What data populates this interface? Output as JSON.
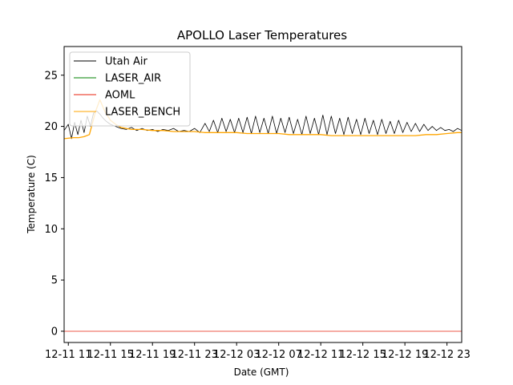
{
  "chart_data": {
    "type": "line",
    "title": "APOLLO Laser Temperatures",
    "xlabel": "Date (GMT)",
    "ylabel": "Temperature (C)",
    "xlim": [
      -0.4,
      37.4
    ],
    "ylim": [
      -1.1,
      27.8
    ],
    "x_unit": "hours since 12-11 11:00",
    "xticks": [
      {
        "value": 0,
        "label": "12-11 11"
      },
      {
        "value": 4,
        "label": "12-11 15"
      },
      {
        "value": 8,
        "label": "12-11 19"
      },
      {
        "value": 12,
        "label": "12-11 23"
      },
      {
        "value": 16,
        "label": "12-12 03"
      },
      {
        "value": 20,
        "label": "12-12 07"
      },
      {
        "value": 24,
        "label": "12-12 11"
      },
      {
        "value": 28,
        "label": "12-12 15"
      },
      {
        "value": 32,
        "label": "12-12 19"
      },
      {
        "value": 36,
        "label": "12-12 23"
      }
    ],
    "yticks": [
      {
        "value": 0,
        "label": "0"
      },
      {
        "value": 5,
        "label": "5"
      },
      {
        "value": 10,
        "label": "10"
      },
      {
        "value": 15,
        "label": "15"
      },
      {
        "value": 20,
        "label": "20"
      },
      {
        "value": 25,
        "label": "25"
      }
    ],
    "legend_position": "top-left",
    "series": [
      {
        "name": "Utah Air",
        "color": "#000000",
        "x": [
          -0.4,
          0.0,
          0.3,
          0.6,
          0.9,
          1.2,
          1.5,
          1.8,
          2.1,
          2.4,
          2.7,
          3.0,
          3.3,
          3.6,
          4.0,
          4.5,
          5.0,
          5.5,
          6.0,
          6.5,
          7.0,
          7.5,
          8.0,
          8.5,
          9.0,
          9.5,
          10.0,
          10.5,
          11.0,
          11.5,
          12.0,
          12.5,
          13.0,
          13.4,
          13.8,
          14.2,
          14.6,
          15.0,
          15.4,
          15.8,
          16.2,
          16.6,
          17.0,
          17.4,
          17.8,
          18.2,
          18.6,
          19.0,
          19.4,
          19.8,
          20.2,
          20.6,
          21.0,
          21.4,
          21.8,
          22.2,
          22.6,
          23.0,
          23.4,
          23.8,
          24.2,
          24.6,
          25.0,
          25.4,
          25.8,
          26.2,
          26.6,
          27.0,
          27.4,
          27.8,
          28.2,
          28.6,
          29.0,
          29.4,
          29.8,
          30.2,
          30.6,
          31.0,
          31.4,
          31.8,
          32.2,
          32.6,
          33.0,
          33.4,
          33.8,
          34.2,
          34.6,
          35.0,
          35.4,
          35.8,
          36.2,
          36.6,
          37.0,
          37.4
        ],
        "values": [
          19.6,
          20.2,
          18.8,
          20.4,
          19.2,
          20.6,
          19.4,
          21.0,
          20.0,
          21.3,
          21.5,
          21.2,
          20.8,
          20.5,
          20.2,
          20.0,
          19.8,
          19.7,
          19.9,
          19.6,
          19.8,
          19.6,
          19.7,
          19.5,
          19.7,
          19.6,
          19.8,
          19.5,
          19.6,
          19.5,
          19.8,
          19.4,
          20.3,
          19.5,
          20.6,
          19.4,
          20.8,
          19.5,
          20.7,
          19.4,
          20.8,
          19.4,
          20.9,
          19.3,
          21.0,
          19.4,
          20.8,
          19.3,
          21.0,
          19.3,
          20.8,
          19.4,
          20.9,
          19.3,
          20.7,
          19.2,
          21.0,
          19.3,
          20.8,
          19.2,
          21.1,
          19.2,
          21.0,
          19.3,
          20.8,
          19.2,
          20.9,
          19.3,
          20.7,
          19.2,
          20.8,
          19.3,
          20.6,
          19.2,
          20.7,
          19.3,
          20.5,
          19.3,
          20.6,
          19.4,
          20.4,
          19.5,
          20.3,
          19.5,
          20.2,
          19.6,
          20.0,
          19.6,
          19.9,
          19.6,
          19.7,
          19.5,
          19.8,
          19.6
        ]
      },
      {
        "name": "LASER_AIR",
        "color": "#008000",
        "x": [],
        "values": []
      },
      {
        "name": "AOML",
        "color": "#e8200c",
        "x": [
          -0.4,
          37.4
        ],
        "values": [
          0.0,
          0.0
        ]
      },
      {
        "name": "LASER_BENCH",
        "color": "#ffa500",
        "x": [
          -0.4,
          0.5,
          1.0,
          1.5,
          2.0,
          2.6,
          3.0,
          3.5,
          4.0,
          4.5,
          5.0,
          5.5,
          6.0,
          7.0,
          8.0,
          9.0,
          10.0,
          11.0,
          12.0,
          13.0,
          14.0,
          15.0,
          16.0,
          17.0,
          18.0,
          19.0,
          20.0,
          21.0,
          22.0,
          23.0,
          24.0,
          25.0,
          26.0,
          27.0,
          28.0,
          29.0,
          30.0,
          31.0,
          32.0,
          33.0,
          34.0,
          35.0,
          36.0,
          37.0,
          37.4
        ],
        "values": [
          18.8,
          18.9,
          18.9,
          19.0,
          19.2,
          21.5,
          22.6,
          21.4,
          20.6,
          20.2,
          19.9,
          19.8,
          19.7,
          19.7,
          19.6,
          19.6,
          19.5,
          19.5,
          19.5,
          19.4,
          19.4,
          19.4,
          19.4,
          19.3,
          19.3,
          19.3,
          19.3,
          19.2,
          19.2,
          19.2,
          19.2,
          19.1,
          19.1,
          19.1,
          19.1,
          19.1,
          19.1,
          19.1,
          19.1,
          19.1,
          19.2,
          19.2,
          19.3,
          19.4,
          19.4
        ]
      }
    ]
  }
}
